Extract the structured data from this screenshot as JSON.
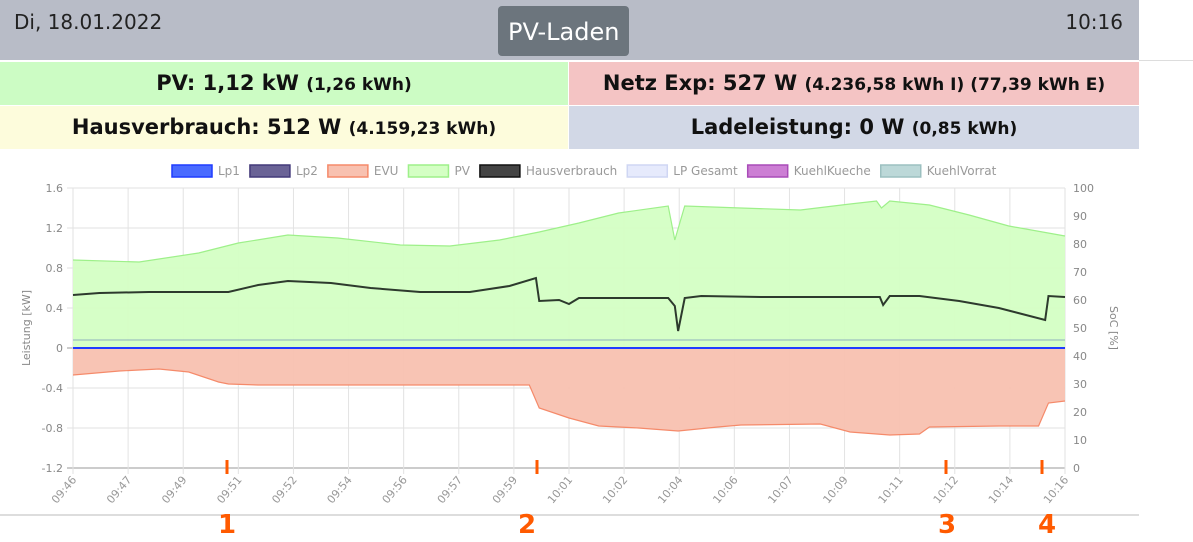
{
  "header": {
    "date": "Di, 18.01.2022",
    "mode": "PV-Laden",
    "time": "10:16"
  },
  "stats": {
    "pv": {
      "label": "PV: 1,12 kW",
      "sub": "(1,26 kWh)"
    },
    "netz": {
      "label": "Netz Exp: 527 W",
      "sub": "(4.236,58 kWh I) (77,39 kWh E)"
    },
    "haus": {
      "label": "Hausverbrauch: 512 W",
      "sub": "(4.159,23 kWh)"
    },
    "lade": {
      "label": "Ladeleistung: 0 W",
      "sub": "(0,85 kWh)"
    }
  },
  "annotations": [
    "1",
    "2",
    "3",
    "4"
  ],
  "chart_data": {
    "type": "line",
    "ylabel": "Leistung [kW]",
    "y2label": "SoC [%]",
    "ylim": [
      -1.2,
      1.6
    ],
    "yticks": [
      "1.6",
      "1.2",
      "0.8",
      "0.4",
      "0",
      "-0.4",
      "-0.8",
      "-1.2"
    ],
    "y2lim": [
      0,
      100
    ],
    "y2ticks": [
      "100",
      "90",
      "80",
      "70",
      "60",
      "50",
      "40",
      "30",
      "20",
      "10",
      "0"
    ],
    "xlim_minutes": [
      0,
      30
    ],
    "xticks": [
      "09:46",
      "09:47",
      "09:49",
      "09:51",
      "09:52",
      "09:54",
      "09:56",
      "09:57",
      "09:59",
      "10:01",
      "10:02",
      "10:04",
      "10:06",
      "10:07",
      "10:09",
      "10:11",
      "10:12",
      "10:14",
      "10:16"
    ],
    "legend_position": "top",
    "legend": [
      {
        "name": "Lp1",
        "fill": "#4a6bff",
        "stroke": "#1f3cff"
      },
      {
        "name": "Lp2",
        "fill": "#6a6396",
        "stroke": "#433a7a"
      },
      {
        "name": "EVU",
        "fill": "#f8c1b0",
        "stroke": "#f58a6a"
      },
      {
        "name": "PV",
        "fill": "#d4ffc4",
        "stroke": "#9ef08a"
      },
      {
        "name": "Hausverbrauch",
        "fill": "#444444",
        "stroke": "#111111"
      },
      {
        "name": "LP Gesamt",
        "fill": "#e6eafc",
        "stroke": "#cfd6f3"
      },
      {
        "name": "KuehlKueche",
        "fill": "#cc7ed4",
        "stroke": "#a94cb8"
      },
      {
        "name": "KuehlVorrat",
        "fill": "#bcd8d8",
        "stroke": "#9cc0c0"
      }
    ],
    "series": [
      {
        "name": "PV",
        "points": [
          [
            0,
            0.88
          ],
          [
            2,
            0.86
          ],
          [
            3.8,
            0.95
          ],
          [
            5,
            1.05
          ],
          [
            6.5,
            1.13
          ],
          [
            8,
            1.1
          ],
          [
            9.9,
            1.03
          ],
          [
            11.4,
            1.02
          ],
          [
            12.9,
            1.08
          ],
          [
            14.1,
            1.16
          ],
          [
            15.3,
            1.25
          ],
          [
            16.5,
            1.35
          ],
          [
            18,
            1.42
          ],
          [
            18.2,
            1.08
          ],
          [
            18.5,
            1.42
          ],
          [
            20.2,
            1.4
          ],
          [
            22,
            1.38
          ],
          [
            23.5,
            1.44
          ],
          [
            24.3,
            1.47
          ],
          [
            24.45,
            1.4
          ],
          [
            24.7,
            1.47
          ],
          [
            25.9,
            1.43
          ],
          [
            27.1,
            1.33
          ],
          [
            28.3,
            1.22
          ],
          [
            30,
            1.12
          ]
        ]
      },
      {
        "name": "Hausverbrauch",
        "points": [
          [
            0,
            0.53
          ],
          [
            0.8,
            0.55
          ],
          [
            2.3,
            0.56
          ],
          [
            3.8,
            0.56
          ],
          [
            4.7,
            0.56
          ],
          [
            5.6,
            0.63
          ],
          [
            6.5,
            0.67
          ],
          [
            7.8,
            0.65
          ],
          [
            9,
            0.6
          ],
          [
            10.5,
            0.56
          ],
          [
            12,
            0.56
          ],
          [
            13.2,
            0.62
          ],
          [
            14,
            0.7
          ],
          [
            14.1,
            0.47
          ],
          [
            14.7,
            0.48
          ],
          [
            15,
            0.44
          ],
          [
            15.3,
            0.5
          ],
          [
            18,
            0.5
          ],
          [
            18.2,
            0.42
          ],
          [
            18.3,
            0.17
          ],
          [
            18.5,
            0.5
          ],
          [
            19,
            0.52
          ],
          [
            20.8,
            0.51
          ],
          [
            24.4,
            0.51
          ],
          [
            24.5,
            0.43
          ],
          [
            24.7,
            0.52
          ],
          [
            25.6,
            0.52
          ],
          [
            26.8,
            0.47
          ],
          [
            28,
            0.4
          ],
          [
            29.4,
            0.28
          ],
          [
            29.5,
            0.52
          ],
          [
            30,
            0.51
          ]
        ]
      },
      {
        "name": "EVU",
        "points": [
          [
            0,
            -0.27
          ],
          [
            1.4,
            -0.23
          ],
          [
            2.6,
            -0.21
          ],
          [
            3.5,
            -0.24
          ],
          [
            4.4,
            -0.34
          ],
          [
            4.7,
            -0.36
          ],
          [
            5.6,
            -0.37
          ],
          [
            13.8,
            -0.37
          ],
          [
            14.1,
            -0.6
          ],
          [
            15,
            -0.7
          ],
          [
            15.9,
            -0.78
          ],
          [
            17.1,
            -0.8
          ],
          [
            18.3,
            -0.83
          ],
          [
            19.5,
            -0.79
          ],
          [
            20.2,
            -0.77
          ],
          [
            22.6,
            -0.76
          ],
          [
            23.5,
            -0.84
          ],
          [
            24.7,
            -0.87
          ],
          [
            25.6,
            -0.86
          ],
          [
            25.9,
            -0.79
          ],
          [
            28,
            -0.78
          ],
          [
            29.2,
            -0.78
          ],
          [
            29.5,
            -0.55
          ],
          [
            30,
            -0.53
          ]
        ]
      },
      {
        "name": "Lp1",
        "points": [
          [
            0,
            0
          ],
          [
            30,
            0
          ]
        ]
      },
      {
        "name": "KuehlVorrat",
        "points": [
          [
            0,
            0.08
          ],
          [
            30,
            0.08
          ]
        ]
      }
    ]
  }
}
